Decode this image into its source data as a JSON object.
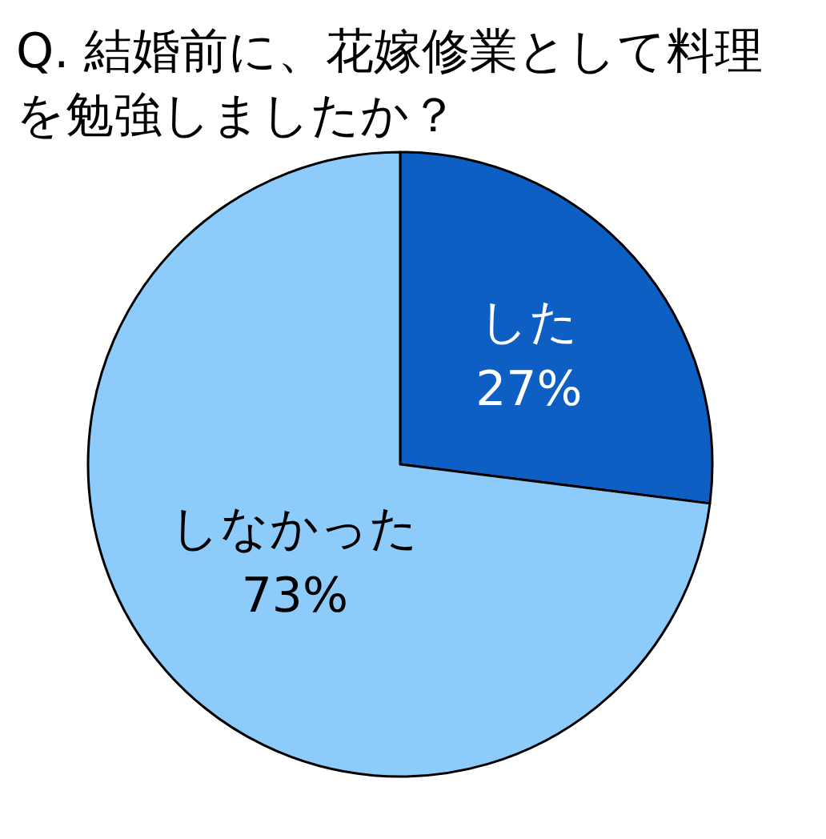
{
  "chart_data": {
    "type": "pie",
    "title": "Q. 結婚前に、花嫁修業として料理を勉強しましたか？",
    "categories": [
      "した",
      "しなかった"
    ],
    "values": [
      27,
      73
    ],
    "colors": [
      "#0d5fc4",
      "#8ccbfa"
    ],
    "value_labels": [
      "27%",
      "73%"
    ]
  }
}
